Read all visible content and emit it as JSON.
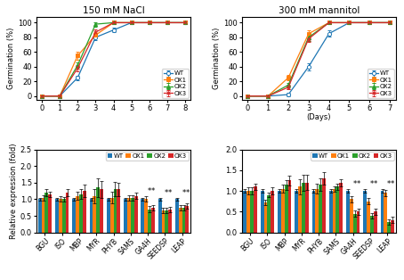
{
  "chart_data": [
    {
      "type": "line",
      "title": "150 mM NaCl",
      "y_label": "Germination (%)",
      "x": [
        0,
        1,
        2,
        3,
        4,
        5,
        6,
        7,
        8
      ],
      "xlim": [
        -0.3,
        8.3
      ],
      "xticks": [
        0,
        1,
        2,
        3,
        4,
        5,
        6,
        7,
        8
      ],
      "ylim": [
        -5,
        108
      ],
      "yticks": [
        0,
        20,
        40,
        60,
        80,
        100
      ],
      "legend": "lower right",
      "series": [
        {
          "name": "WT",
          "marker": "open_circle",
          "values": [
            0,
            0,
            25,
            80,
            90,
            100,
            100,
            100,
            100
          ],
          "errors": [
            0,
            0,
            3,
            4,
            3,
            0,
            0,
            0,
            0
          ]
        },
        {
          "name": "OX1",
          "marker": "square",
          "values": [
            0,
            0,
            55,
            83,
            100,
            100,
            100,
            100,
            100
          ],
          "errors": [
            0,
            0,
            5,
            4,
            0,
            0,
            0,
            0,
            0
          ]
        },
        {
          "name": "OX2",
          "marker": "triangle",
          "values": [
            0,
            0,
            42,
            98,
            100,
            100,
            100,
            100,
            100
          ],
          "errors": [
            0,
            0,
            4,
            3,
            0,
            0,
            0,
            0,
            0
          ]
        },
        {
          "name": "OX3",
          "marker": "x",
          "values": [
            0,
            0,
            38,
            87,
            100,
            100,
            100,
            100,
            100
          ],
          "errors": [
            0,
            0,
            4,
            4,
            0,
            0,
            0,
            0,
            0
          ]
        }
      ]
    },
    {
      "type": "line",
      "title": "300 mM mannitol",
      "y_label": "Germination (%)",
      "x_label": "(Days)",
      "x": [
        0,
        1,
        2,
        3,
        4,
        5,
        6,
        7
      ],
      "xlim": [
        -0.3,
        7.3
      ],
      "xticks": [
        0,
        1,
        2,
        3,
        4,
        5,
        6,
        7
      ],
      "ylim": [
        -5,
        108
      ],
      "yticks": [
        0,
        20,
        40,
        60,
        80,
        100
      ],
      "legend": "lower right",
      "series": [
        {
          "name": "WT",
          "marker": "open_circle",
          "values": [
            0,
            0,
            2,
            40,
            85,
            100,
            100,
            100
          ],
          "errors": [
            0,
            0,
            2,
            5,
            4,
            0,
            0,
            0
          ]
        },
        {
          "name": "OX1",
          "marker": "square",
          "values": [
            0,
            0,
            25,
            85,
            100,
            100,
            100,
            100
          ],
          "errors": [
            0,
            0,
            4,
            4,
            0,
            0,
            0,
            0
          ]
        },
        {
          "name": "OX2",
          "marker": "triangle",
          "values": [
            0,
            0,
            15,
            80,
            100,
            100,
            100,
            100
          ],
          "errors": [
            0,
            0,
            3,
            5,
            0,
            0,
            0,
            0
          ]
        },
        {
          "name": "OX3",
          "marker": "x",
          "values": [
            0,
            0,
            12,
            78,
            100,
            100,
            100,
            100
          ],
          "errors": [
            0,
            0,
            3,
            4,
            0,
            0,
            0,
            0
          ]
        }
      ]
    },
    {
      "type": "bar",
      "y_label": "Relative expression (fold)",
      "categories": [
        "BGU",
        "ISO",
        "MBP",
        "MYR",
        "PHYB",
        "SAMS",
        "GA4H",
        "SEEDSP",
        "LEAP"
      ],
      "ylim": [
        0,
        2.5
      ],
      "yticks": [
        0.0,
        0.5,
        1.0,
        1.5,
        2.0,
        2.5
      ],
      "legend": "upper right",
      "series": [
        {
          "name": "WT",
          "values": [
            1.0,
            1.0,
            1.0,
            1.0,
            1.0,
            1.0,
            1.0,
            1.0,
            1.0
          ],
          "errors": [
            0.04,
            0.04,
            0.04,
            0.04,
            0.04,
            0.04,
            0.04,
            0.04,
            0.04
          ]
        },
        {
          "name": "OX1",
          "values": [
            1.05,
            1.0,
            1.1,
            1.1,
            1.05,
            1.05,
            1.0,
            0.65,
            0.75
          ],
          "errors": [
            0.08,
            0.08,
            0.12,
            0.22,
            0.18,
            0.08,
            0.08,
            0.08,
            0.08
          ]
        },
        {
          "name": "OX2",
          "values": [
            1.2,
            1.0,
            1.15,
            1.35,
            1.3,
            1.05,
            0.7,
            0.65,
            0.75
          ],
          "errors": [
            0.1,
            0.07,
            0.15,
            0.28,
            0.22,
            0.08,
            0.1,
            0.08,
            0.08
          ]
        },
        {
          "name": "OX3",
          "values": [
            1.15,
            1.2,
            1.25,
            1.3,
            1.3,
            1.1,
            0.75,
            0.7,
            0.8
          ],
          "errors": [
            0.08,
            0.1,
            0.18,
            0.25,
            0.2,
            0.1,
            0.08,
            0.08,
            0.08
          ]
        }
      ],
      "annotations": [
        {
          "text": "*",
          "category": "GA4H",
          "series": "OX2"
        },
        {
          "text": "*",
          "category": "GA4H",
          "series": "OX3"
        },
        {
          "text": "*",
          "category": "SEEDSP",
          "series": "OX2"
        },
        {
          "text": "*",
          "category": "SEEDSP",
          "series": "OX3"
        },
        {
          "text": "*",
          "category": "LEAP",
          "series": "OX2"
        },
        {
          "text": "*",
          "category": "LEAP",
          "series": "OX3"
        }
      ]
    },
    {
      "type": "bar",
      "categories": [
        "BGU",
        "ISO",
        "MBP",
        "MYR",
        "PHYB",
        "SAMS",
        "GA4H",
        "SEEDSP",
        "LEAP"
      ],
      "ylim": [
        0,
        2.0
      ],
      "yticks": [
        0.0,
        0.5,
        1.0,
        1.5,
        2.0
      ],
      "legend": "upper right",
      "series": [
        {
          "name": "WT",
          "values": [
            1.0,
            1.0,
            1.0,
            1.0,
            1.0,
            1.0,
            1.0,
            1.0,
            1.0
          ],
          "errors": [
            0.04,
            0.04,
            0.04,
            0.04,
            0.04,
            0.04,
            0.04,
            0.04,
            0.04
          ]
        },
        {
          "name": "OX1",
          "values": [
            1.0,
            0.72,
            1.05,
            1.1,
            1.05,
            1.05,
            0.8,
            0.75,
            0.95
          ],
          "errors": [
            0.08,
            0.07,
            0.1,
            0.18,
            0.12,
            0.07,
            0.08,
            0.08,
            0.08
          ]
        },
        {
          "name": "OX2",
          "values": [
            1.0,
            0.9,
            1.15,
            1.2,
            1.15,
            1.1,
            0.45,
            0.4,
            0.25
          ],
          "errors": [
            0.08,
            0.05,
            0.12,
            0.2,
            0.15,
            0.08,
            0.08,
            0.07,
            0.07
          ]
        },
        {
          "name": "OX3",
          "values": [
            1.1,
            1.0,
            1.25,
            1.2,
            1.3,
            1.2,
            0.5,
            0.5,
            0.3
          ],
          "errors": [
            0.08,
            0.08,
            0.12,
            0.18,
            0.15,
            0.08,
            0.08,
            0.08,
            0.08
          ]
        }
      ],
      "annotations": [
        {
          "text": "*",
          "category": "GA4H",
          "series": "OX2"
        },
        {
          "text": "*",
          "category": "GA4H",
          "series": "OX3"
        },
        {
          "text": "*",
          "category": "SEEDSP",
          "series": "OX2"
        },
        {
          "text": "*",
          "category": "SEEDSP",
          "series": "OX3"
        },
        {
          "text": "*",
          "category": "LEAP",
          "series": "OX2"
        },
        {
          "text": "*",
          "category": "LEAP",
          "series": "OX3"
        }
      ]
    }
  ]
}
